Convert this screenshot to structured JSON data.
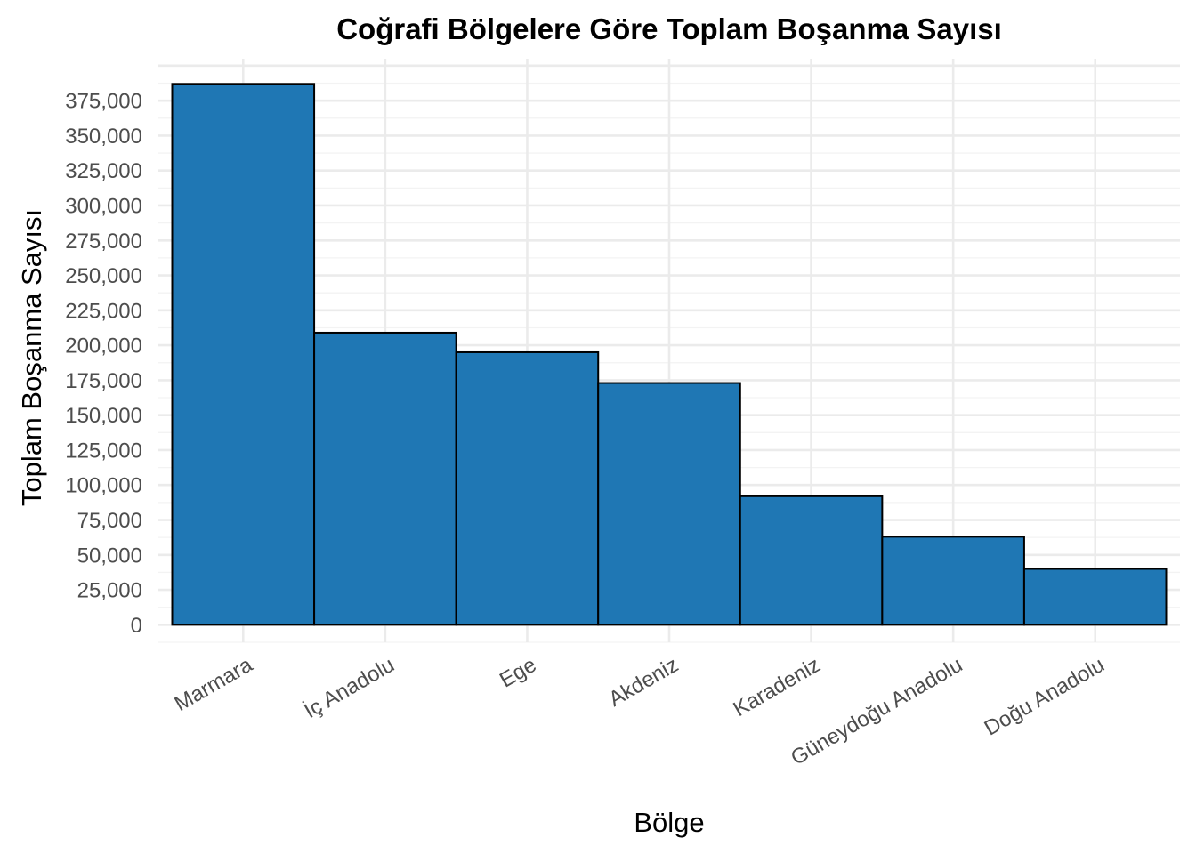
{
  "chart_data": {
    "type": "bar",
    "title": "Coğrafi Bölgelere Göre Toplam Boşanma Sayısı",
    "xlabel": "Bölge",
    "ylabel": "Toplam Boşanma Sayısı",
    "categories": [
      "Marmara",
      "İç Anadolu",
      "Ege",
      "Akdeniz",
      "Karadeniz",
      "Güneydoğu Anadolu",
      "Doğu Anadolu"
    ],
    "values": [
      387000,
      209000,
      195000,
      173000,
      92000,
      63000,
      40000
    ],
    "ylim": [
      -12500,
      405000
    ],
    "yticks": [
      0,
      25000,
      50000,
      75000,
      100000,
      125000,
      150000,
      175000,
      200000,
      225000,
      250000,
      275000,
      300000,
      325000,
      350000,
      375000
    ],
    "ytick_labels": [
      "0",
      "25,000",
      "50,000",
      "75,000",
      "100,000",
      "125,000",
      "150,000",
      "175,000",
      "200,000",
      "225,000",
      "250,000",
      "275,000",
      "300,000",
      "325,000",
      "350,000",
      "375,000"
    ],
    "bar_color": "#1f77b4",
    "bar_edge_color": "#000000",
    "grid": true,
    "legend": "none"
  }
}
